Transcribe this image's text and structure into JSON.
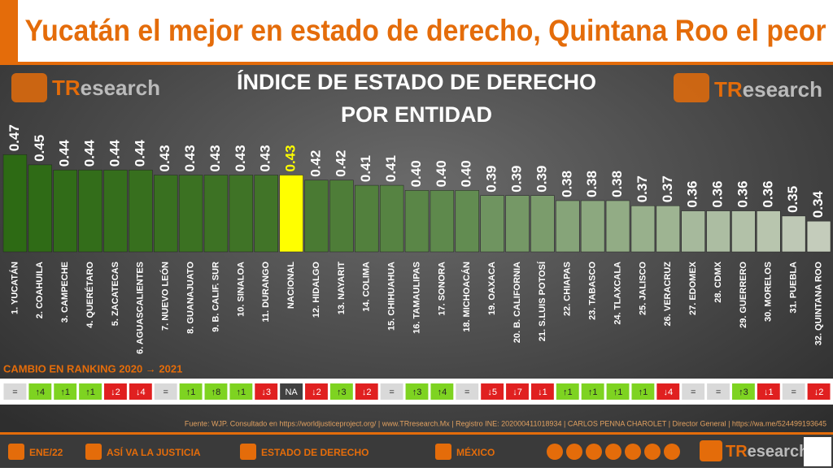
{
  "header": {
    "title": "Yucatán el mejor en estado de derecho, Quintana Roo el peor"
  },
  "logo": {
    "left": "TR",
    "right": "esearch"
  },
  "chart_data": {
    "type": "bar",
    "title": "ÍNDICE DE ESTADO DE DERECHO",
    "subtitle": "POR ENTIDAD",
    "categories": [
      "1. YUCATÁN",
      "2. COAHUILA",
      "3. CAMPECHE",
      "4. QUERÉTARO",
      "5. ZACATECAS",
      "6. AGUASCALIENTES",
      "7. NUEVO LEÓN",
      "8. GUANAJUATO",
      "9. B. CALIF. SUR",
      "10. SINALOA",
      "11. DURANGO",
      "NACIONAL",
      "12. HIDALGO",
      "13. NAYARIT",
      "14. COLIMA",
      "15. CHIHUAHUA",
      "16. TAMAULIPAS",
      "17. SONORA",
      "18. MICHOACÁN",
      "19. OAXACA",
      "20. B. CALIFORNIA",
      "21. S.LUIS POTOSÍ",
      "22. CHIAPAS",
      "23. TABASCO",
      "24. TLAXCALA",
      "25. JALISCO",
      "26. VERACRUZ",
      "27. EDOMEX",
      "28. CDMX",
      "29. GUERRERO",
      "30. MORELOS",
      "31. PUEBLA",
      "32. QUINTANA ROO"
    ],
    "values": [
      0.47,
      0.45,
      0.44,
      0.44,
      0.44,
      0.44,
      0.43,
      0.43,
      0.43,
      0.43,
      0.43,
      0.43,
      0.42,
      0.42,
      0.41,
      0.41,
      0.4,
      0.4,
      0.4,
      0.39,
      0.39,
      0.39,
      0.38,
      0.38,
      0.38,
      0.37,
      0.37,
      0.36,
      0.36,
      0.36,
      0.36,
      0.35,
      0.34
    ],
    "value_labels": [
      "0.47",
      "0.45",
      "0.44",
      "0.44",
      "0.44",
      "0.44",
      "0.43",
      "0.43",
      "0.43",
      "0.43",
      "0.43",
      "0.43",
      "0.42",
      "0.42",
      "0.41",
      "0.41",
      "0.40",
      "0.40",
      "0.40",
      "0.39",
      "0.39",
      "0.39",
      "0.38",
      "0.38",
      "0.38",
      "0.37",
      "0.37",
      "0.36",
      "0.36",
      "0.36",
      "0.36",
      "0.35",
      "0.34"
    ],
    "colors": [
      "#2d6a14",
      "#2f6b16",
      "#316c18",
      "#336d1a",
      "#356e1c",
      "#376f1e",
      "#397020",
      "#3b7122",
      "#3d7224",
      "#3f7326",
      "#417428",
      "#ffff00",
      "#4a7a33",
      "#4e7d38",
      "#52803d",
      "#568342",
      "#5a8647",
      "#5e894c",
      "#628c51",
      "#6f9460",
      "#759866",
      "#7b9c6c",
      "#86a479",
      "#8ca87f",
      "#92ac85",
      "#98b08c",
      "#9eb492",
      "#a6b99c",
      "#acbda2",
      "#b2c1a8",
      "#b8c5ae",
      "#bec8b5",
      "#c4ccbb"
    ],
    "ylim": [
      0.28,
      0.48
    ],
    "change_title": "CAMBIO EN RANKING 2020 → 2021",
    "changes": [
      "=",
      "↑4",
      "↑1",
      "↑1",
      "↓2",
      "↓4",
      "=",
      "↑1",
      "↑8",
      "↑1",
      "↓3",
      "NA",
      "↓2",
      "↑3",
      "↓2",
      "=",
      "↑3",
      "↑4",
      "=",
      "↓5",
      "↓7",
      "↓1",
      "↑1",
      "↑1",
      "↑1",
      "↑1",
      "↓4",
      "=",
      "=",
      "↑3",
      "↓1",
      "=",
      "↓2"
    ]
  },
  "footer": {
    "source": "Fuente: WJP. Consultado en https://worldjusticeproject.org/ | www.TRresearch.Mx | Registro INE: 202000411018934 | CARLOS PENNA CHAROLET | Director General | https://wa.me/524499193645",
    "menu": [
      "ENE/22",
      "ASÍ VA LA JUSTICIA",
      "ESTADO DE DERECHO",
      "MÉXICO"
    ]
  }
}
